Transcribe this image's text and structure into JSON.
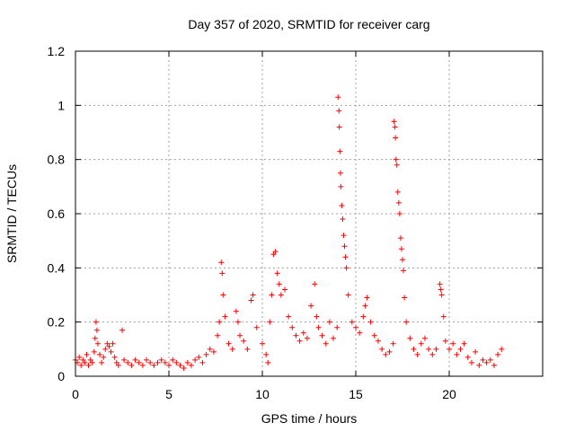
{
  "chart_data": {
    "type": "scatter",
    "title": "Day 357 of 2020, SRMTID for receiver carg",
    "xlabel": "GPS time / hours",
    "ylabel": "SRMTID / TECUs",
    "xlim": [
      0,
      25
    ],
    "ylim": [
      0,
      1.2
    ],
    "xticks": [
      0,
      5,
      10,
      15,
      20
    ],
    "yticks": [
      0,
      0.2,
      0.4,
      0.6,
      0.8,
      1.0,
      1.2
    ],
    "xtick_labels": [
      "0",
      "5",
      "10",
      "15",
      "20"
    ],
    "ytick_labels": [
      "0",
      "0.2",
      "0.4",
      "0.6",
      "0.8",
      "1",
      "1.2"
    ],
    "grid": true,
    "marker": "plus",
    "color": "#ff0000",
    "series": [
      {
        "name": "SRMTID",
        "points": [
          [
            0.0,
            0.06
          ],
          [
            0.1,
            0.05
          ],
          [
            0.2,
            0.07
          ],
          [
            0.3,
            0.04
          ],
          [
            0.4,
            0.06
          ],
          [
            0.5,
            0.05
          ],
          [
            0.6,
            0.08
          ],
          [
            0.7,
            0.04
          ],
          [
            0.8,
            0.06
          ],
          [
            0.9,
            0.05
          ],
          [
            1.0,
            0.09
          ],
          [
            1.05,
            0.14
          ],
          [
            1.1,
            0.2
          ],
          [
            1.15,
            0.17
          ],
          [
            1.2,
            0.12
          ],
          [
            1.3,
            0.08
          ],
          [
            1.4,
            0.05
          ],
          [
            1.5,
            0.07
          ],
          [
            1.6,
            0.1
          ],
          [
            1.7,
            0.12
          ],
          [
            1.8,
            0.11
          ],
          [
            1.9,
            0.09
          ],
          [
            2.0,
            0.12
          ],
          [
            2.1,
            0.07
          ],
          [
            2.2,
            0.05
          ],
          [
            2.3,
            0.04
          ],
          [
            2.5,
            0.17
          ],
          [
            2.6,
            0.06
          ],
          [
            2.8,
            0.05
          ],
          [
            3.0,
            0.04
          ],
          [
            3.2,
            0.06
          ],
          [
            3.4,
            0.05
          ],
          [
            3.6,
            0.04
          ],
          [
            3.8,
            0.06
          ],
          [
            4.0,
            0.05
          ],
          [
            4.2,
            0.04
          ],
          [
            4.4,
            0.05
          ],
          [
            4.6,
            0.06
          ],
          [
            4.8,
            0.05
          ],
          [
            5.0,
            0.04
          ],
          [
            5.2,
            0.06
          ],
          [
            5.4,
            0.05
          ],
          [
            5.6,
            0.04
          ],
          [
            5.8,
            0.03
          ],
          [
            6.0,
            0.05
          ],
          [
            6.2,
            0.04
          ],
          [
            6.4,
            0.06
          ],
          [
            6.6,
            0.07
          ],
          [
            6.8,
            0.05
          ],
          [
            7.0,
            0.08
          ],
          [
            7.2,
            0.1
          ],
          [
            7.4,
            0.09
          ],
          [
            7.6,
            0.15
          ],
          [
            7.7,
            0.2
          ],
          [
            7.8,
            0.42
          ],
          [
            7.85,
            0.38
          ],
          [
            7.9,
            0.3
          ],
          [
            8.0,
            0.22
          ],
          [
            8.2,
            0.12
          ],
          [
            8.4,
            0.1
          ],
          [
            8.6,
            0.24
          ],
          [
            8.7,
            0.2
          ],
          [
            8.8,
            0.15
          ],
          [
            9.0,
            0.13
          ],
          [
            9.2,
            0.1
          ],
          [
            9.4,
            0.28
          ],
          [
            9.5,
            0.3
          ],
          [
            9.7,
            0.18
          ],
          [
            10.0,
            0.12
          ],
          [
            10.2,
            0.08
          ],
          [
            10.3,
            0.05
          ],
          [
            10.4,
            0.2
          ],
          [
            10.5,
            0.3
          ],
          [
            10.6,
            0.45
          ],
          [
            10.7,
            0.46
          ],
          [
            10.8,
            0.38
          ],
          [
            10.9,
            0.34
          ],
          [
            11.0,
            0.3
          ],
          [
            11.2,
            0.32
          ],
          [
            11.4,
            0.22
          ],
          [
            11.6,
            0.18
          ],
          [
            11.8,
            0.15
          ],
          [
            12.0,
            0.13
          ],
          [
            12.2,
            0.16
          ],
          [
            12.4,
            0.14
          ],
          [
            12.6,
            0.26
          ],
          [
            12.8,
            0.34
          ],
          [
            12.9,
            0.22
          ],
          [
            13.0,
            0.18
          ],
          [
            13.2,
            0.15
          ],
          [
            13.4,
            0.12
          ],
          [
            13.6,
            0.2
          ],
          [
            13.8,
            0.14
          ],
          [
            14.0,
            0.18
          ],
          [
            14.05,
            1.03
          ],
          [
            14.1,
            0.98
          ],
          [
            14.12,
            0.92
          ],
          [
            14.15,
            0.83
          ],
          [
            14.18,
            0.75
          ],
          [
            14.2,
            0.7
          ],
          [
            14.25,
            0.63
          ],
          [
            14.3,
            0.58
          ],
          [
            14.35,
            0.52
          ],
          [
            14.4,
            0.48
          ],
          [
            14.45,
            0.44
          ],
          [
            14.5,
            0.4
          ],
          [
            14.6,
            0.3
          ],
          [
            14.8,
            0.2
          ],
          [
            15.0,
            0.18
          ],
          [
            15.2,
            0.16
          ],
          [
            15.4,
            0.22
          ],
          [
            15.5,
            0.26
          ],
          [
            15.6,
            0.29
          ],
          [
            15.8,
            0.2
          ],
          [
            16.0,
            0.15
          ],
          [
            16.2,
            0.13
          ],
          [
            16.4,
            0.1
          ],
          [
            16.6,
            0.08
          ],
          [
            16.8,
            0.09
          ],
          [
            17.0,
            0.12
          ],
          [
            17.05,
            0.94
          ],
          [
            17.1,
            0.92
          ],
          [
            17.12,
            0.88
          ],
          [
            17.15,
            0.8
          ],
          [
            17.2,
            0.78
          ],
          [
            17.25,
            0.68
          ],
          [
            17.3,
            0.64
          ],
          [
            17.35,
            0.6
          ],
          [
            17.4,
            0.51
          ],
          [
            17.45,
            0.47
          ],
          [
            17.5,
            0.43
          ],
          [
            17.55,
            0.39
          ],
          [
            17.6,
            0.29
          ],
          [
            17.7,
            0.2
          ],
          [
            17.9,
            0.14
          ],
          [
            18.1,
            0.1
          ],
          [
            18.3,
            0.08
          ],
          [
            18.5,
            0.12
          ],
          [
            18.7,
            0.14
          ],
          [
            18.9,
            0.1
          ],
          [
            19.1,
            0.08
          ],
          [
            19.3,
            0.1
          ],
          [
            19.5,
            0.34
          ],
          [
            19.55,
            0.32
          ],
          [
            19.6,
            0.3
          ],
          [
            19.7,
            0.22
          ],
          [
            19.8,
            0.13
          ],
          [
            20.0,
            0.1
          ],
          [
            20.2,
            0.12
          ],
          [
            20.4,
            0.08
          ],
          [
            20.6,
            0.1
          ],
          [
            20.8,
            0.12
          ],
          [
            21.0,
            0.07
          ],
          [
            21.2,
            0.05
          ],
          [
            21.4,
            0.09
          ],
          [
            21.6,
            0.04
          ],
          [
            21.8,
            0.06
          ],
          [
            22.0,
            0.05
          ],
          [
            22.2,
            0.06
          ],
          [
            22.4,
            0.04
          ],
          [
            22.6,
            0.08
          ],
          [
            22.8,
            0.1
          ]
        ]
      }
    ]
  }
}
